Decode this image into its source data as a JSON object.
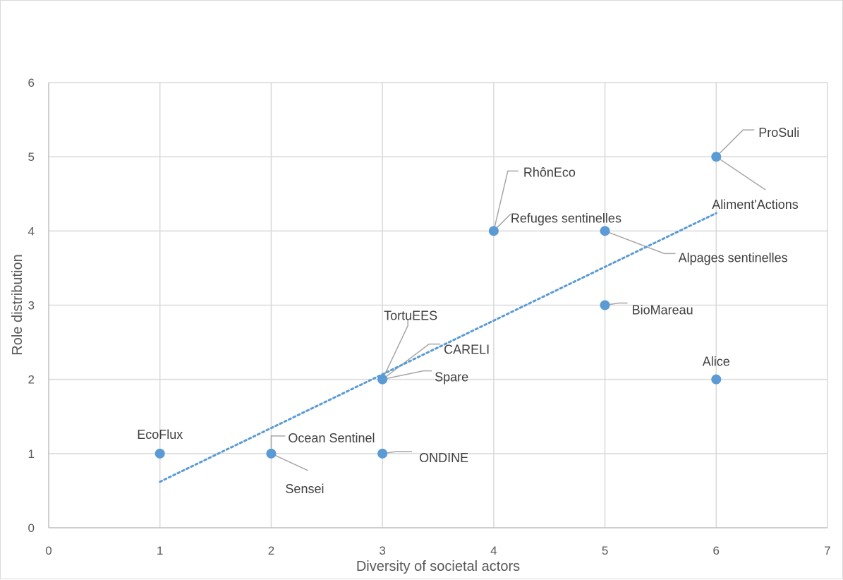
{
  "chart_data": {
    "type": "scatter",
    "title": "",
    "xlabel": "Diversity of societal actors",
    "ylabel": "Role distribution",
    "xlim": [
      0,
      7
    ],
    "ylim": [
      0,
      6
    ],
    "x_ticks": [
      "0",
      "1",
      "2",
      "3",
      "4",
      "5",
      "6",
      "7"
    ],
    "y_ticks": [
      "0",
      "1",
      "2",
      "3",
      "4",
      "5",
      "6"
    ],
    "grid": true,
    "legend": "none",
    "marker_color": "#5b9bd5",
    "trendline": {
      "type": "linear",
      "style": "dotted",
      "color": "#5b9bd5",
      "from": [
        1,
        0.62
      ],
      "to": [
        6,
        4.24
      ]
    },
    "points": [
      {
        "label": "EcoFlux",
        "x": 1,
        "y": 1
      },
      {
        "label": "Ocean Sentinel",
        "x": 2,
        "y": 1
      },
      {
        "label": "Sensei",
        "x": 2,
        "y": 1
      },
      {
        "label": "ONDINE",
        "x": 3,
        "y": 1
      },
      {
        "label": "TortuEES",
        "x": 3,
        "y": 2
      },
      {
        "label": "CARELI",
        "x": 3,
        "y": 2
      },
      {
        "label": "Spare",
        "x": 3,
        "y": 2
      },
      {
        "label": "RhônEco",
        "x": 4,
        "y": 4
      },
      {
        "label": "Refuges sentinelles",
        "x": 4,
        "y": 4
      },
      {
        "label": "Alpages sentinelles",
        "x": 5,
        "y": 4
      },
      {
        "label": "BioMareau",
        "x": 5,
        "y": 3
      },
      {
        "label": "Alice",
        "x": 6,
        "y": 2
      },
      {
        "label": "ProSuli",
        "x": 6,
        "y": 5
      },
      {
        "label": "Aliment'Actions",
        "x": 6,
        "y": 5
      }
    ]
  }
}
